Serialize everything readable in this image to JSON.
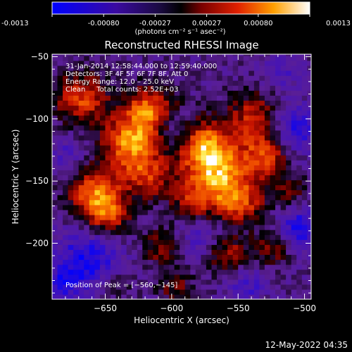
{
  "colorbar": {
    "ticks": [
      "-0.0013",
      "-0.00080",
      "-0.00027",
      "0.00027",
      "0.00080",
      "0.0013"
    ],
    "units": "(photons cm⁻² s⁻¹ asec⁻²)"
  },
  "chart_data": {
    "type": "heatmap",
    "title": "Reconstructed RHESSI Image",
    "xlabel": "Heliocentric X (arcsec)",
    "ylabel": "Heliocentric Y (arcsec)",
    "xlim": [
      -690,
      -495
    ],
    "ylim": [
      -245,
      -48
    ],
    "x_ticks": [
      -650,
      -600,
      -550,
      -500
    ],
    "y_ticks": [
      -50,
      -100,
      -150,
      -200
    ],
    "x_tick_labels": [
      "−650",
      "−600",
      "−550",
      "−500"
    ],
    "y_tick_labels": [
      "−50",
      "−100",
      "−150",
      "−200"
    ],
    "value_range": [
      -0.0013,
      0.0013
    ],
    "info_lines": [
      "31-Jan-2014 12:58:44.000 to 12:59:40.000",
      "Detectors: 3F 4F 5F 6F 7F 8F, Att 0",
      "Energy Range: 12.0 – 25.0 keV",
      "Clean     Total counts: 2.52E+03"
    ],
    "peak_label": "Position of Peak = [−560,−145]",
    "peak": {
      "x": -560,
      "y": -145
    },
    "blobs": [
      {
        "x": -567,
        "y": -145,
        "v": 0.0013,
        "r": 18
      },
      {
        "x": -632,
        "y": -122,
        "v": 0.0012,
        "r": 16
      },
      {
        "x": -618,
        "y": -95,
        "v": 0.0011,
        "r": 14
      },
      {
        "x": -660,
        "y": -160,
        "v": 0.00105,
        "r": 14
      },
      {
        "x": -650,
        "y": -180,
        "v": 0.0009,
        "r": 12
      },
      {
        "x": -670,
        "y": -85,
        "v": 0.00095,
        "r": 14
      },
      {
        "x": -540,
        "y": -100,
        "v": 0.0008,
        "r": 14
      },
      {
        "x": -530,
        "y": -130,
        "v": 0.0009,
        "r": 12
      },
      {
        "x": -580,
        "y": -120,
        "v": 0.001,
        "r": 14
      },
      {
        "x": -550,
        "y": -170,
        "v": 0.0008,
        "r": 12
      },
      {
        "x": -585,
        "y": -170,
        "v": 0.0006,
        "r": 12
      },
      {
        "x": -610,
        "y": -205,
        "v": 0.0006,
        "r": 10
      },
      {
        "x": -560,
        "y": -210,
        "v": 0.0007,
        "r": 11
      },
      {
        "x": -525,
        "y": -205,
        "v": 0.0006,
        "r": 10
      },
      {
        "x": -620,
        "y": -150,
        "v": 0.0007,
        "r": 12
      },
      {
        "x": -515,
        "y": -160,
        "v": 0.0005,
        "r": 10
      },
      {
        "x": -600,
        "y": -235,
        "v": 0.0005,
        "r": 10
      },
      {
        "x": -645,
        "y": -235,
        "v": 0.0004,
        "r": 9
      },
      {
        "x": -665,
        "y": -215,
        "v": -0.0008,
        "r": 18
      },
      {
        "x": -600,
        "y": -110,
        "v": -0.0006,
        "r": 12
      },
      {
        "x": -510,
        "y": -110,
        "v": -0.0007,
        "r": 14
      },
      {
        "x": -505,
        "y": -190,
        "v": -0.0008,
        "r": 12
      },
      {
        "x": -580,
        "y": -195,
        "v": -0.0005,
        "r": 12
      },
      {
        "x": -545,
        "y": -235,
        "v": -0.0005,
        "r": 10
      },
      {
        "x": -680,
        "y": -130,
        "v": -0.0004,
        "r": 10
      },
      {
        "x": -520,
        "y": -65,
        "v": -0.0004,
        "r": 10
      },
      {
        "x": -685,
        "y": -235,
        "v": -0.0005,
        "r": 10
      }
    ]
  },
  "footer": {
    "timestamp": "12-May-2022 04:35"
  }
}
